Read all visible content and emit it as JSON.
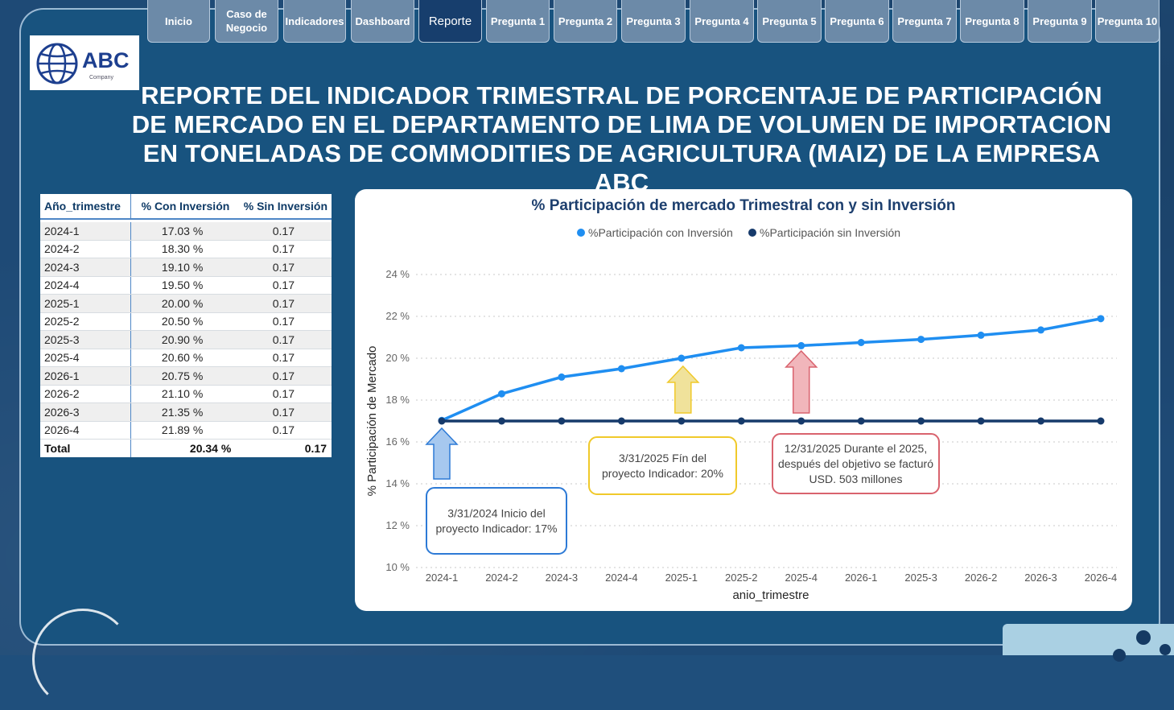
{
  "nav": {
    "items": [
      {
        "label": "Inicio",
        "active": false
      },
      {
        "label": "Caso de Negocio",
        "active": false
      },
      {
        "label": "Indicadores",
        "active": false
      },
      {
        "label": "Dashboard",
        "active": false
      },
      {
        "label": "Reporte",
        "active": true
      },
      {
        "label": "Pregunta 1",
        "active": false
      },
      {
        "label": "Pregunta 2",
        "active": false
      },
      {
        "label": "Pregunta 3",
        "active": false
      },
      {
        "label": "Pregunta 4",
        "active": false
      },
      {
        "label": "Pregunta 5",
        "active": false
      },
      {
        "label": "Pregunta 6",
        "active": false
      },
      {
        "label": "Pregunta 7",
        "active": false
      },
      {
        "label": "Pregunta 8",
        "active": false
      },
      {
        "label": "Pregunta 9",
        "active": false
      },
      {
        "label": "Pregunta 10",
        "active": false
      }
    ]
  },
  "logo": {
    "text": "ABC",
    "subtext": "Company"
  },
  "page_title": "REPORTE DEL INDICADOR TRIMESTRAL DE PORCENTAJE DE PARTICIPACIÓN DE MERCADO EN EL DEPARTAMENTO DE LIMA DE VOLUMEN DE IMPORTACION EN TONELADAS DE COMMODITIES DE AGRICULTURA (MAIZ) DE LA EMPRESA ABC",
  "table": {
    "headers": [
      "Año_trimestre",
      "% Con Inversión",
      "% Sin Inversión"
    ],
    "rows": [
      [
        "2024-1",
        "17.03 %",
        "0.17"
      ],
      [
        "2024-2",
        "18.30 %",
        "0.17"
      ],
      [
        "2024-3",
        "19.10 %",
        "0.17"
      ],
      [
        "2024-4",
        "19.50 %",
        "0.17"
      ],
      [
        "2025-1",
        "20.00 %",
        "0.17"
      ],
      [
        "2025-2",
        "20.50 %",
        "0.17"
      ],
      [
        "2025-3",
        "20.90 %",
        "0.17"
      ],
      [
        "2025-4",
        "20.60 %",
        "0.17"
      ],
      [
        "2026-1",
        "20.75 %",
        "0.17"
      ],
      [
        "2026-2",
        "21.10 %",
        "0.17"
      ],
      [
        "2026-3",
        "21.35 %",
        "0.17"
      ],
      [
        "2026-4",
        "21.89 %",
        "0.17"
      ]
    ],
    "total": [
      "Total",
      "20.34 %",
      "0.17"
    ]
  },
  "chart_data": {
    "type": "line",
    "title": "% Participación de mercado Trimestral con y sin Inversión",
    "xlabel": "anio_trimestre",
    "ylabel": "% Participación de Mercado",
    "categories": [
      "2024-1",
      "2024-2",
      "2024-3",
      "2024-4",
      "2025-1",
      "2025-2",
      "2025-4",
      "2026-1",
      "2025-3",
      "2026-2",
      "2026-3",
      "2026-4"
    ],
    "series": [
      {
        "name": "%Participación con Inversión",
        "color": "#1f8ef1",
        "values": [
          17.03,
          18.3,
          19.1,
          19.5,
          20.0,
          20.5,
          20.6,
          20.75,
          20.9,
          21.1,
          21.35,
          21.89
        ]
      },
      {
        "name": "%Participación sin Inversión",
        "color": "#163a6b",
        "values": [
          17.0,
          17.0,
          17.0,
          17.0,
          17.0,
          17.0,
          17.0,
          17.0,
          17.0,
          17.0,
          17.0,
          17.0
        ]
      }
    ],
    "ylim": [
      10,
      24
    ],
    "yticks": [
      "10 %",
      "12 %",
      "14 %",
      "16 %",
      "18 %",
      "20 %",
      "22 %",
      "24 %"
    ],
    "grid": true,
    "legend": "top",
    "annotations": [
      {
        "text": "3/31/2024 Inicio del proyecto Indicador: 17%",
        "color": "#2d7ad6",
        "fill": "#a6c8ef",
        "category": "2024-1"
      },
      {
        "text": "3/31/2025 Fín del proyecto Indicador: 20%",
        "color": "#f0c92a",
        "fill": "#f0e29b",
        "category": "2025-1"
      },
      {
        "text": "12/31/2025 Durante el 2025, después del objetivo se facturó USD. 503 millones",
        "color": "#d9636e",
        "fill": "#f1b6bb",
        "category": "2025-4"
      }
    ]
  }
}
